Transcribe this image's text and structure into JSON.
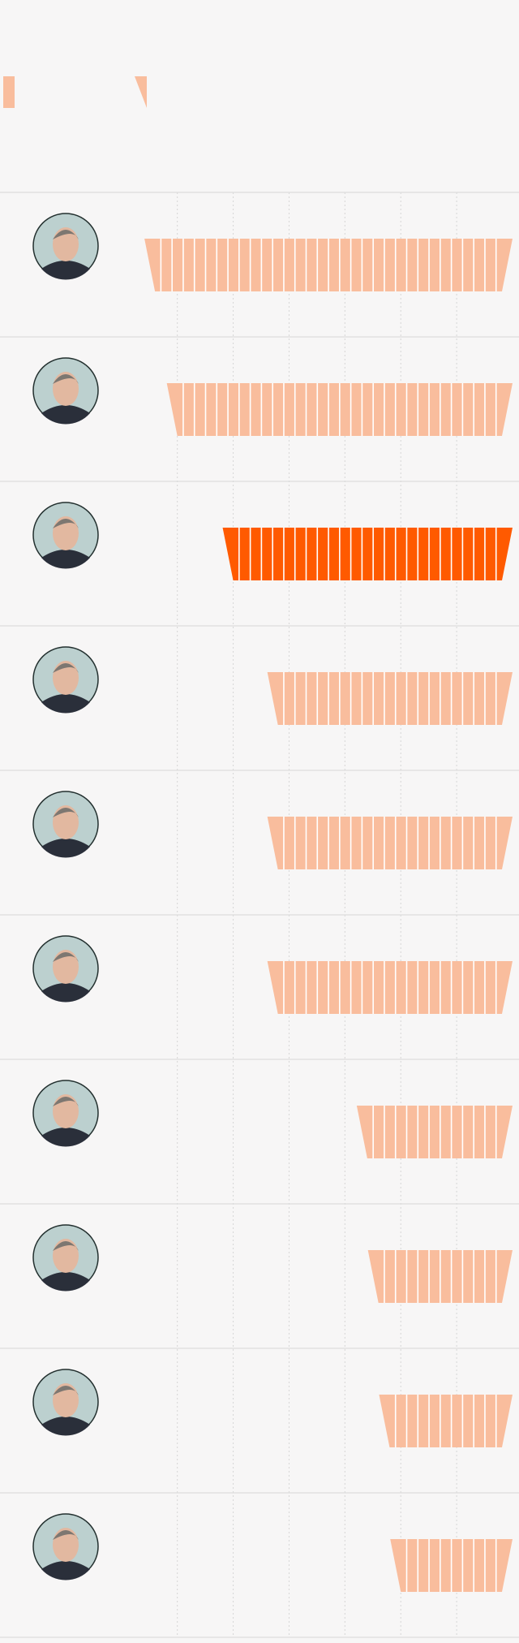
{
  "chart_data": {
    "type": "bar",
    "orientation": "horizontal",
    "xaxis_reversed": true,
    "categories": [
      null,
      null,
      null,
      null,
      null,
      null,
      null,
      null,
      null,
      null
    ],
    "values": [
      32,
      30,
      25,
      21,
      21,
      21,
      13,
      12,
      11,
      10
    ],
    "colors": [
      "#f9bd9d",
      "#f9bd9d",
      "#ff5a00",
      "#f9bd9d",
      "#f9bd9d",
      "#f9bd9d",
      "#f9bd9d",
      "#f9bd9d",
      "#f9bd9d",
      "#f9bd9d"
    ],
    "xlim": [
      0,
      45
    ],
    "xticks": [
      5,
      10,
      15,
      20,
      25,
      30
    ],
    "grid": true
  }
}
